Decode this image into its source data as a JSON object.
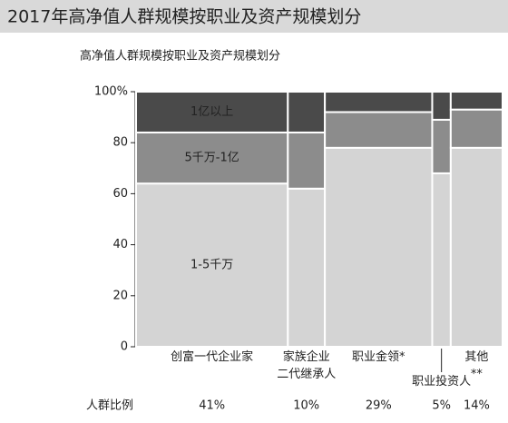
{
  "header": "2017年高净值人群规模按职业及资产规模划分",
  "chart_data": {
    "type": "marimekko",
    "title": "高净值人群规模按职业及资产规模划分",
    "categories": [
      "创富一代企业家",
      "家族企业\n二代继承人",
      "职业金领*",
      "职业投资人",
      "其他**"
    ],
    "column_widths": {
      "name": "人群比例",
      "values": [
        41,
        10,
        29,
        5,
        14
      ],
      "value_labels": [
        "41%",
        "10%",
        "29%",
        "5%",
        "14%"
      ]
    },
    "series": [
      {
        "name": "1-5千万",
        "color": "#d4d4d4",
        "values": [
          64,
          62,
          78,
          68,
          78
        ]
      },
      {
        "name": "5千万-1亿",
        "color": "#8c8c8c",
        "values": [
          20,
          22,
          14,
          21,
          15
        ]
      },
      {
        "name": "1亿以上",
        "color": "#4a4a4a",
        "values": [
          16,
          16,
          8,
          11,
          7
        ]
      }
    ],
    "ylim": [
      0,
      100
    ],
    "yticks": [
      0,
      20,
      40,
      60,
      80,
      {
        "value": 100,
        "label": "100%"
      }
    ]
  }
}
